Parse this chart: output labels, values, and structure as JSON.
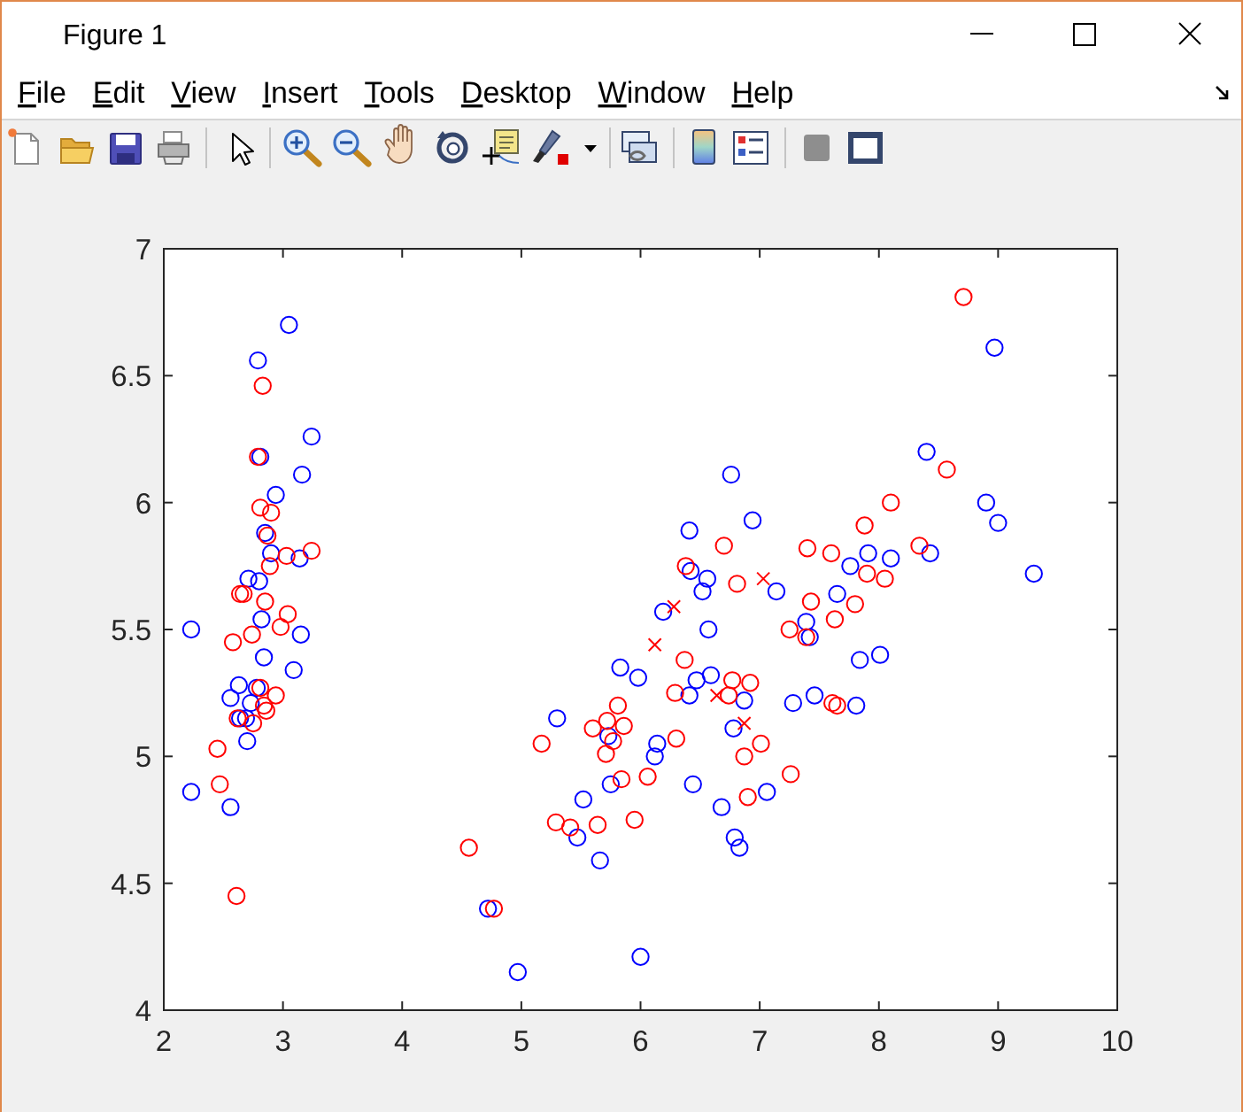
{
  "chart_data": {
    "type": "scatter",
    "title": "Figure 1",
    "annotations": [
      "File",
      "Edit",
      "View",
      "Insert",
      "Tools",
      "Desktop",
      "Window",
      "Help"
    ],
    "xlim": [
      2,
      10
    ],
    "xticks": [
      2,
      3,
      4,
      5,
      6,
      7,
      8,
      9,
      10
    ],
    "ylim": [
      4,
      7
    ],
    "yticks": [
      4,
      4.5,
      5,
      5.5,
      6,
      6.5,
      7
    ],
    "series": [
      {
        "color": "#0000ff",
        "marker": "circle",
        "x": [
          3.05,
          2.79,
          3.24,
          2.81,
          3.16,
          2.94,
          2.85,
          2.9,
          3.14,
          2.71,
          2.8,
          2.23,
          2.82,
          3.15,
          2.84,
          3.09,
          2.63,
          2.56,
          2.78,
          2.73,
          2.64,
          2.69,
          2.7,
          2.23,
          2.56,
          6.52,
          6.56,
          7.14,
          6.19,
          6.57,
          5.83,
          5.98,
          6.47,
          6.59,
          6.41,
          6.87,
          7.28,
          5.3,
          5.73,
          6.14,
          6.12,
          6.78,
          5.75,
          5.52,
          6.44,
          6.68,
          7.06,
          5.47,
          5.66,
          6.79,
          6.83,
          4.72,
          4.97,
          6.0,
          8.4,
          6.76,
          6.94,
          7.91,
          8.43,
          7.76,
          8.1,
          7.65,
          7.39,
          7.42,
          7.84,
          8.01,
          7.46,
          7.81,
          8.97,
          8.9,
          9.0,
          9.3,
          6.41,
          6.42
        ],
        "values": [
          6.7,
          6.56,
          6.26,
          6.18,
          6.11,
          6.03,
          5.88,
          5.8,
          5.78,
          5.7,
          5.69,
          5.5,
          5.54,
          5.48,
          5.39,
          5.34,
          5.28,
          5.23,
          5.27,
          5.21,
          5.15,
          5.15,
          5.06,
          4.86,
          4.8,
          5.65,
          5.7,
          5.65,
          5.57,
          5.5,
          5.35,
          5.31,
          5.3,
          5.32,
          5.24,
          5.22,
          5.21,
          5.15,
          5.08,
          5.05,
          5.0,
          5.11,
          4.89,
          4.83,
          4.89,
          4.8,
          4.86,
          4.68,
          4.59,
          4.68,
          4.64,
          4.4,
          4.15,
          4.21,
          6.2,
          6.11,
          5.93,
          5.8,
          5.8,
          5.75,
          5.78,
          5.64,
          5.53,
          5.47,
          5.38,
          5.4,
          5.24,
          5.2,
          6.61,
          6.0,
          5.92,
          5.72,
          5.89,
          5.73
        ]
      },
      {
        "color": "#ff0000",
        "marker": "circle",
        "x": [
          2.83,
          2.79,
          2.81,
          2.9,
          2.87,
          3.03,
          3.24,
          2.89,
          2.64,
          2.67,
          2.85,
          3.04,
          2.98,
          2.74,
          2.58,
          2.81,
          2.94,
          2.84,
          2.86,
          2.62,
          2.75,
          2.45,
          2.47,
          2.61,
          6.81,
          7.25,
          6.37,
          6.77,
          6.92,
          6.29,
          6.74,
          5.81,
          5.72,
          5.6,
          5.86,
          5.77,
          5.71,
          5.17,
          6.3,
          7.01,
          6.87,
          7.26,
          5.84,
          6.06,
          6.9,
          5.29,
          5.41,
          5.64,
          5.95,
          4.56,
          4.77,
          8.57,
          8.1,
          7.88,
          6.7,
          7.4,
          7.6,
          8.34,
          7.9,
          8.05,
          7.43,
          7.8,
          7.63,
          7.39,
          7.61,
          7.65,
          8.71,
          6.38
        ],
        "values": [
          6.46,
          6.18,
          5.98,
          5.96,
          5.87,
          5.79,
          5.81,
          5.75,
          5.64,
          5.64,
          5.61,
          5.56,
          5.51,
          5.48,
          5.45,
          5.27,
          5.24,
          5.2,
          5.18,
          5.15,
          5.13,
          5.03,
          4.89,
          4.45,
          5.68,
          5.5,
          5.38,
          5.3,
          5.29,
          5.25,
          5.24,
          5.2,
          5.14,
          5.11,
          5.12,
          5.06,
          5.01,
          5.05,
          5.07,
          5.05,
          5.0,
          4.93,
          4.91,
          4.92,
          4.84,
          4.74,
          4.72,
          4.73,
          4.75,
          4.64,
          4.4,
          6.13,
          6.0,
          5.91,
          5.83,
          5.82,
          5.8,
          5.83,
          5.72,
          5.7,
          5.61,
          5.6,
          5.54,
          5.47,
          5.21,
          5.2,
          6.81,
          5.75
        ]
      },
      {
        "color": "#ff0000",
        "marker": "cross",
        "x": [
          6.28,
          6.12,
          6.64,
          6.87,
          7.03
        ],
        "values": [
          5.59,
          5.44,
          5.24,
          5.13,
          5.7
        ]
      }
    ]
  }
}
